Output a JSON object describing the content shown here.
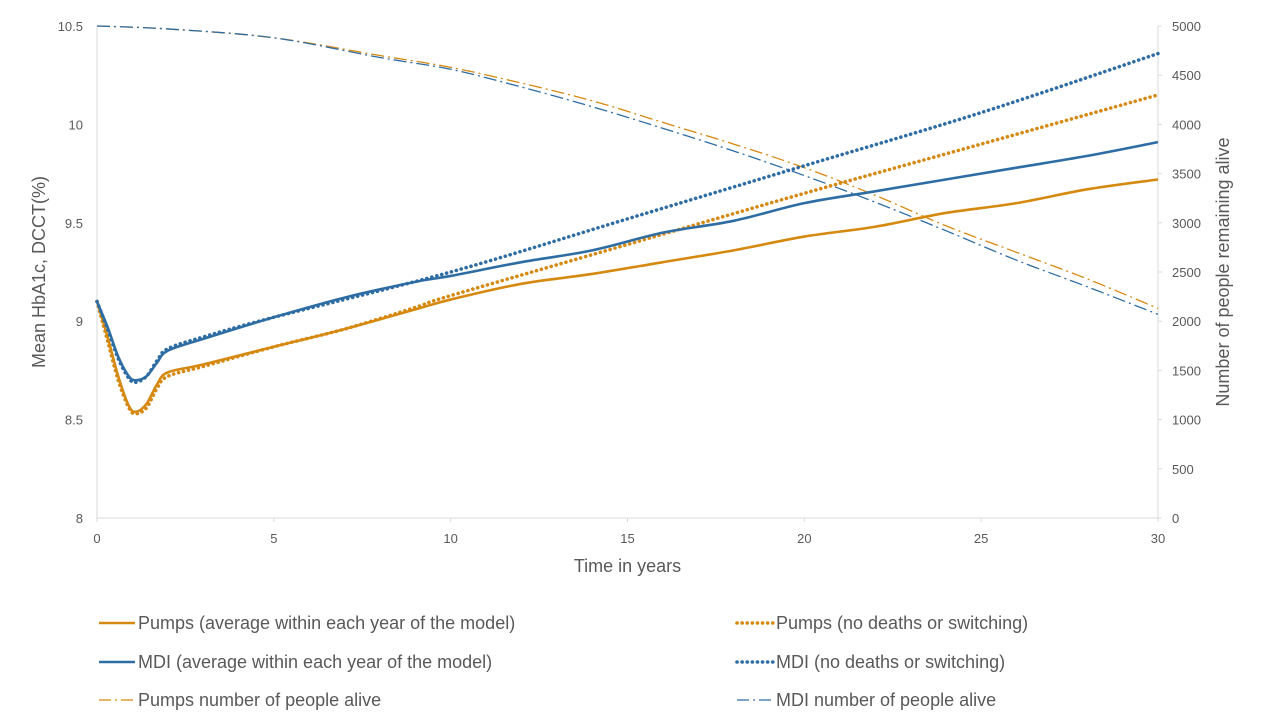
{
  "chart_data": {
    "type": "line",
    "title": "",
    "xlabel": "Time in years",
    "ylabel": "Mean HbA1c, DCCT(%)",
    "y2label": "Number of people remaining alive",
    "xlim": [
      0,
      30
    ],
    "ylim": [
      8,
      10.5
    ],
    "y2lim": [
      0,
      5000
    ],
    "x_ticks": [
      "0",
      "5",
      "10",
      "15",
      "20",
      "25",
      "30"
    ],
    "y_ticks": [
      "8",
      "8.5",
      "9",
      "9.5",
      "10",
      "10.5"
    ],
    "y2_ticks": [
      "0",
      "500",
      "1000",
      "1500",
      "2000",
      "2500",
      "3000",
      "3500",
      "4000",
      "4500",
      "5000"
    ],
    "grid": false,
    "legend_position": "bottom",
    "series": [
      {
        "name": "Pumps (average within each year of the model)",
        "axis": "left",
        "color": "#D68910",
        "style": "solid",
        "points": [
          [
            0,
            9.1
          ],
          [
            0.3,
            8.92
          ],
          [
            0.6,
            8.72
          ],
          [
            0.9,
            8.57
          ],
          [
            1.1,
            8.54
          ],
          [
            1.4,
            8.58
          ],
          [
            1.7,
            8.68
          ],
          [
            2,
            8.74
          ],
          [
            3,
            8.78
          ],
          [
            5,
            8.87
          ],
          [
            7,
            8.96
          ],
          [
            9,
            9.06
          ],
          [
            10,
            9.11
          ],
          [
            12,
            9.19
          ],
          [
            14,
            9.24
          ],
          [
            16,
            9.3
          ],
          [
            18,
            9.36
          ],
          [
            20,
            9.43
          ],
          [
            22,
            9.48
          ],
          [
            24,
            9.55
          ],
          [
            26,
            9.6
          ],
          [
            28,
            9.67
          ],
          [
            30,
            9.72
          ]
        ]
      },
      {
        "name": "Pumps (no deaths or switching)",
        "axis": "left",
        "color": "#D68910",
        "style": "dotted",
        "points": [
          [
            0,
            9.1
          ],
          [
            0.3,
            8.9
          ],
          [
            0.6,
            8.7
          ],
          [
            0.9,
            8.56
          ],
          [
            1.1,
            8.53
          ],
          [
            1.4,
            8.56
          ],
          [
            1.7,
            8.66
          ],
          [
            2,
            8.72
          ],
          [
            3,
            8.77
          ],
          [
            5,
            8.87
          ],
          [
            7,
            8.96
          ],
          [
            9,
            9.07
          ],
          [
            10,
            9.13
          ],
          [
            15,
            9.39
          ],
          [
            20,
            9.65
          ],
          [
            25,
            9.9
          ],
          [
            30,
            10.15
          ]
        ]
      },
      {
        "name": "MDI (average within each year of the model)",
        "axis": "left",
        "color": "#2E6DA4",
        "style": "solid",
        "points": [
          [
            0,
            9.1
          ],
          [
            0.3,
            8.97
          ],
          [
            0.6,
            8.82
          ],
          [
            0.9,
            8.72
          ],
          [
            1.1,
            8.7
          ],
          [
            1.4,
            8.72
          ],
          [
            1.7,
            8.79
          ],
          [
            2,
            8.85
          ],
          [
            3,
            8.91
          ],
          [
            5,
            9.02
          ],
          [
            7,
            9.12
          ],
          [
            9,
            9.2
          ],
          [
            10,
            9.23
          ],
          [
            12,
            9.3
          ],
          [
            14,
            9.36
          ],
          [
            16,
            9.45
          ],
          [
            18,
            9.51
          ],
          [
            20,
            9.6
          ],
          [
            22,
            9.66
          ],
          [
            24,
            9.72
          ],
          [
            26,
            9.78
          ],
          [
            28,
            9.84
          ],
          [
            30,
            9.91
          ]
        ]
      },
      {
        "name": "MDI (no deaths or switching)",
        "axis": "left",
        "color": "#2E6DA4",
        "style": "dotted",
        "points": [
          [
            0,
            9.1
          ],
          [
            0.3,
            8.96
          ],
          [
            0.6,
            8.81
          ],
          [
            0.9,
            8.71
          ],
          [
            1.1,
            8.69
          ],
          [
            1.4,
            8.72
          ],
          [
            1.7,
            8.8
          ],
          [
            2,
            8.86
          ],
          [
            3,
            8.92
          ],
          [
            5,
            9.02
          ],
          [
            10,
            9.25
          ],
          [
            15,
            9.52
          ],
          [
            20,
            9.79
          ],
          [
            25,
            10.06
          ],
          [
            30,
            10.36
          ]
        ]
      },
      {
        "name": "Pumps number of people alive",
        "axis": "right",
        "color": "#D68910",
        "style": "dashdot",
        "points": [
          [
            0,
            5000
          ],
          [
            2,
            4970
          ],
          [
            5,
            4880
          ],
          [
            8,
            4700
          ],
          [
            10,
            4580
          ],
          [
            12,
            4420
          ],
          [
            14,
            4240
          ],
          [
            16,
            4020
          ],
          [
            18,
            3800
          ],
          [
            20,
            3560
          ],
          [
            22,
            3280
          ],
          [
            24,
            2970
          ],
          [
            26,
            2700
          ],
          [
            28,
            2430
          ],
          [
            30,
            2130
          ]
        ]
      },
      {
        "name": "MDI number of people alive",
        "axis": "right",
        "color": "#2E6DA4",
        "style": "dashdot",
        "points": [
          [
            0,
            5000
          ],
          [
            2,
            4970
          ],
          [
            5,
            4880
          ],
          [
            8,
            4680
          ],
          [
            10,
            4560
          ],
          [
            12,
            4380
          ],
          [
            14,
            4180
          ],
          [
            16,
            3960
          ],
          [
            18,
            3730
          ],
          [
            20,
            3480
          ],
          [
            22,
            3210
          ],
          [
            24,
            2920
          ],
          [
            26,
            2620
          ],
          [
            28,
            2350
          ],
          [
            30,
            2070
          ]
        ]
      }
    ]
  }
}
